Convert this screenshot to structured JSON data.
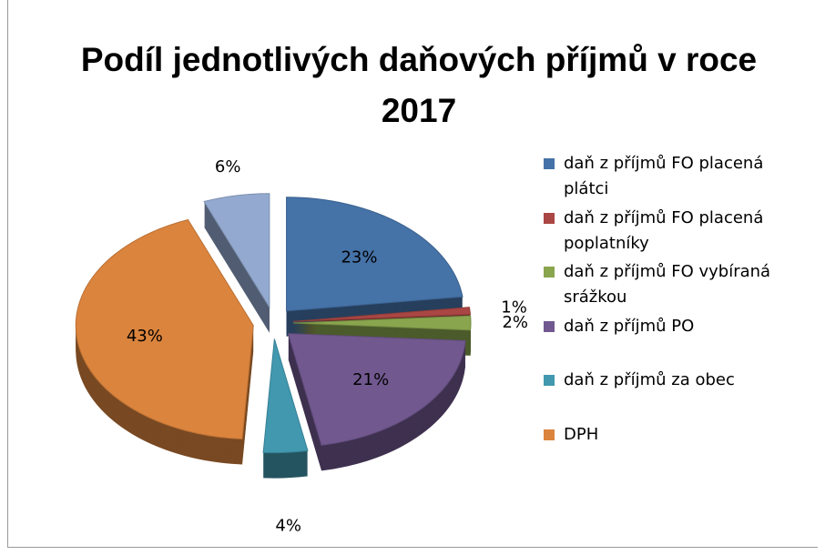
{
  "chart_data": {
    "type": "pie",
    "title": "Podíl jednotlivých daňových příjmů v roce 2017",
    "categories": [
      "daň z příjmů FO placená plátci",
      "daň z příjmů FO placená poplatníky",
      "daň z příjmů FO vybíraná srážkou",
      "daň z příjmů PO",
      "daň z příjmů za obec",
      "DPH",
      null
    ],
    "values": [
      23,
      1,
      2,
      21,
      4,
      43,
      6
    ],
    "value_labels": [
      "23%",
      "1%",
      "2%",
      "21%",
      "4%",
      "43%",
      "6%"
    ],
    "colors": [
      "#4572a7",
      "#aa4643",
      "#89a54e",
      "#71588f",
      "#4198af",
      "#db843d",
      "#93a9cf"
    ],
    "legend": "right"
  }
}
